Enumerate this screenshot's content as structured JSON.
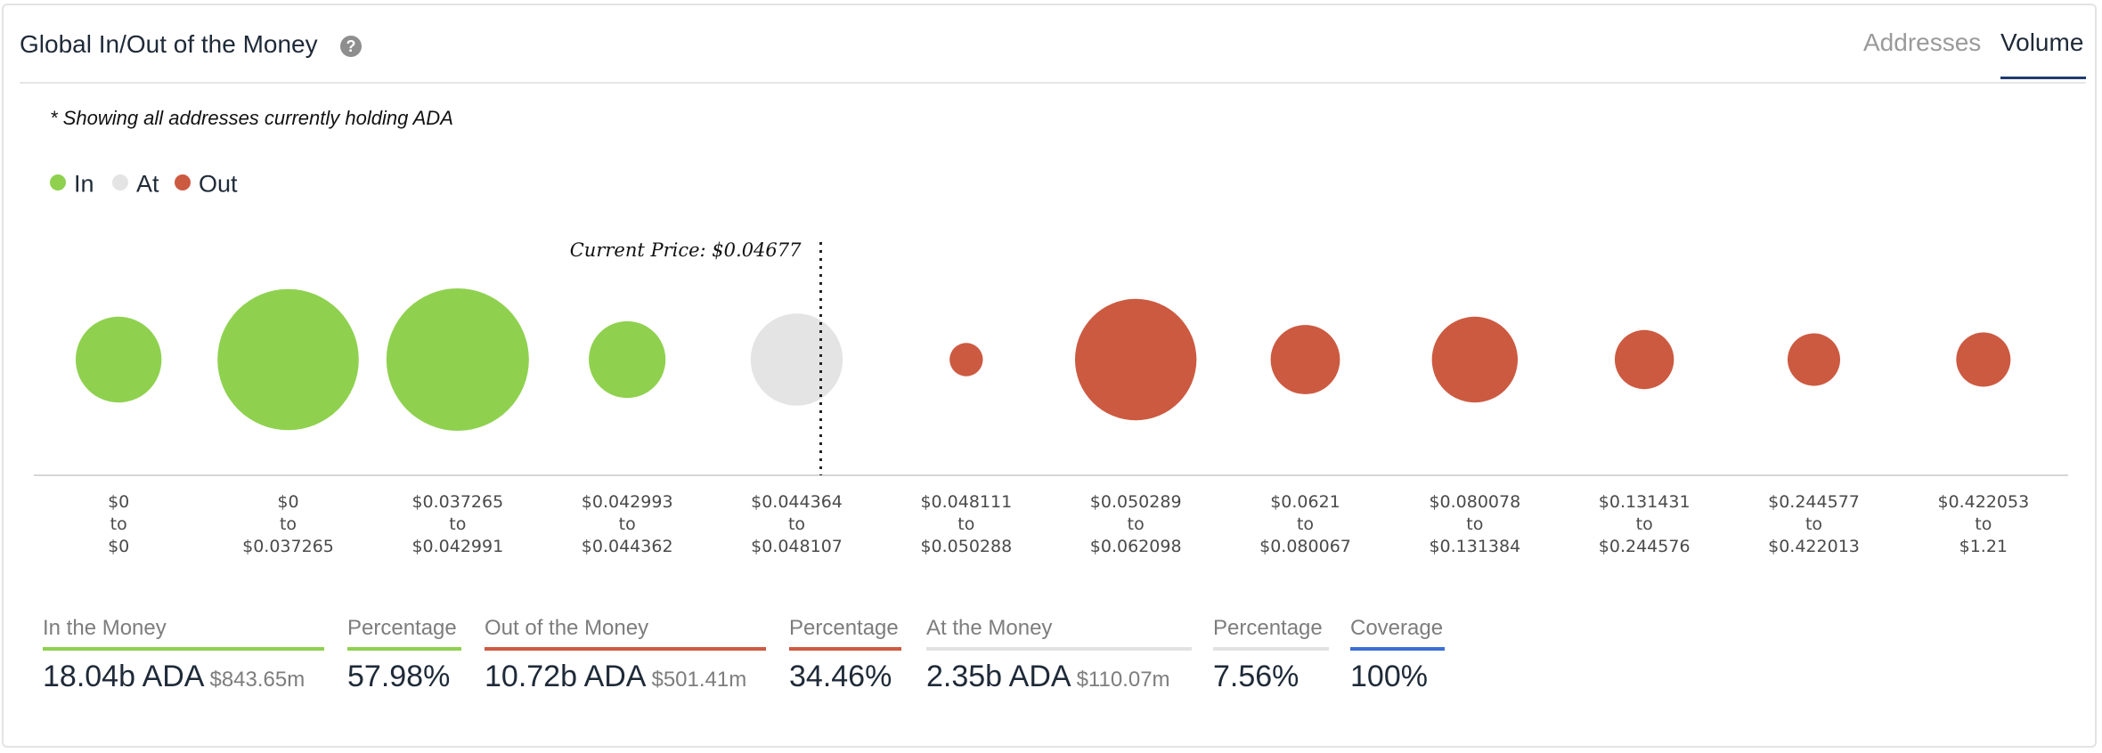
{
  "header": {
    "title": "Global In/Out of the Money",
    "help_icon": "question-circle-icon",
    "tabs": [
      {
        "label": "Addresses",
        "active": false
      },
      {
        "label": "Volume",
        "active": true
      }
    ]
  },
  "note": "* Showing all addresses currently holding ADA",
  "colors": {
    "in": "#8fd14f",
    "at": "#e4e4e4",
    "out": "#cc5a41",
    "coverage": "#3b6fd4"
  },
  "chart_data": {
    "type": "bubble",
    "legend": [
      {
        "label": "In",
        "status": "in"
      },
      {
        "label": "At",
        "status": "at"
      },
      {
        "label": "Out",
        "status": "out"
      }
    ],
    "legend_position": "top-left",
    "current_price_label": "Current Price: $0.04677",
    "current_price": 0.04677,
    "categories": [
      {
        "from": "$0",
        "to": "$0",
        "status": "in",
        "volume": 2.0
      },
      {
        "from": "$0",
        "to": "$0.037265",
        "status": "in",
        "volume": 5.4
      },
      {
        "from": "$0.037265",
        "to": "$0.042991",
        "status": "in",
        "volume": 5.5
      },
      {
        "from": "$0.042993",
        "to": "$0.044362",
        "status": "in",
        "volume": 1.6
      },
      {
        "from": "$0.044364",
        "to": "$0.048107",
        "status": "at",
        "volume": 2.3
      },
      {
        "from": "$0.048111",
        "to": "$0.050288",
        "status": "out",
        "volume": 0.3
      },
      {
        "from": "$0.050289",
        "to": "$0.062098",
        "status": "out",
        "volume": 4.0
      },
      {
        "from": "$0.0621",
        "to": "$0.080067",
        "status": "out",
        "volume": 1.3
      },
      {
        "from": "$0.080078",
        "to": "$0.131384",
        "status": "out",
        "volume": 2.0
      },
      {
        "from": "$0.131431",
        "to": "$0.244576",
        "status": "out",
        "volume": 0.95
      },
      {
        "from": "$0.244577",
        "to": "$0.422013",
        "status": "out",
        "volume": 0.75
      },
      {
        "from": "$0.422053",
        "to": "$1.21",
        "status": "out",
        "volume": 0.8
      }
    ]
  },
  "summary": {
    "in": {
      "label": "In the Money",
      "value": "18.04b ADA",
      "usd": "$843.65m"
    },
    "in_pct": {
      "label": "Percentage",
      "value": "57.98%"
    },
    "out": {
      "label": "Out of the Money",
      "value": "10.72b ADA",
      "usd": "$501.41m"
    },
    "out_pct": {
      "label": "Percentage",
      "value": "34.46%"
    },
    "at": {
      "label": "At the Money",
      "value": "2.35b ADA",
      "usd": "$110.07m"
    },
    "at_pct": {
      "label": "Percentage",
      "value": "7.56%"
    },
    "coverage": {
      "label": "Coverage",
      "value": "100%"
    }
  }
}
